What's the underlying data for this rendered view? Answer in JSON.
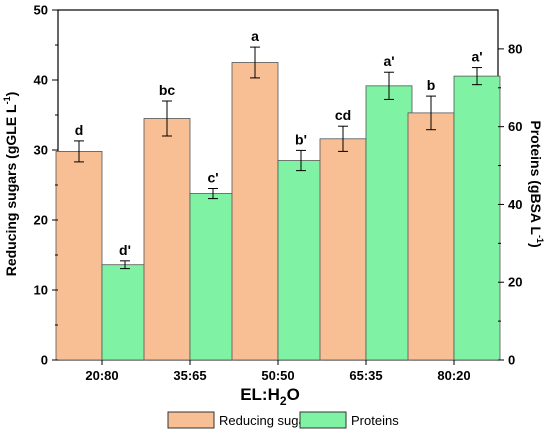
{
  "chart_data": {
    "type": "bar",
    "categories": [
      "20:80",
      "35:65",
      "50:50",
      "65:35",
      "80:20"
    ],
    "xlabel": {
      "prefix": "EL:H",
      "sub": "2",
      "suffix": "O"
    },
    "left_axis": {
      "label": {
        "main": "Reducing sugars (gGLE L",
        "sup": "-1",
        "close": ")"
      },
      "ylim": [
        0,
        50
      ],
      "ticks": [
        "0",
        "10",
        "20",
        "30",
        "40",
        "50"
      ]
    },
    "right_axis": {
      "label": {
        "main": "Proteins (gBSA L",
        "sup": "-1",
        "close": ")"
      },
      "ylim": [
        0,
        90
      ],
      "ticks": [
        "0",
        "20",
        "40",
        "60",
        "80"
      ]
    },
    "series": [
      {
        "name": "Reducing sugars",
        "axis": "left",
        "color": "#F8BF94",
        "values": [
          29.8,
          34.5,
          42.5,
          31.6,
          35.3
        ],
        "errors": [
          1.5,
          2.5,
          2.2,
          1.8,
          2.4
        ],
        "letters": [
          "d",
          "bc",
          "a",
          "cd",
          "b"
        ]
      },
      {
        "name": "Proteins",
        "axis": "right",
        "color": "#7FF2A4",
        "values": [
          24.5,
          42.8,
          51.3,
          70.5,
          73.0
        ],
        "errors": [
          1.0,
          1.3,
          2.6,
          3.5,
          2.2
        ],
        "letters": [
          "d'",
          "c'",
          "b'",
          "a'",
          "a'"
        ]
      }
    ],
    "legend_position": "bottom"
  }
}
